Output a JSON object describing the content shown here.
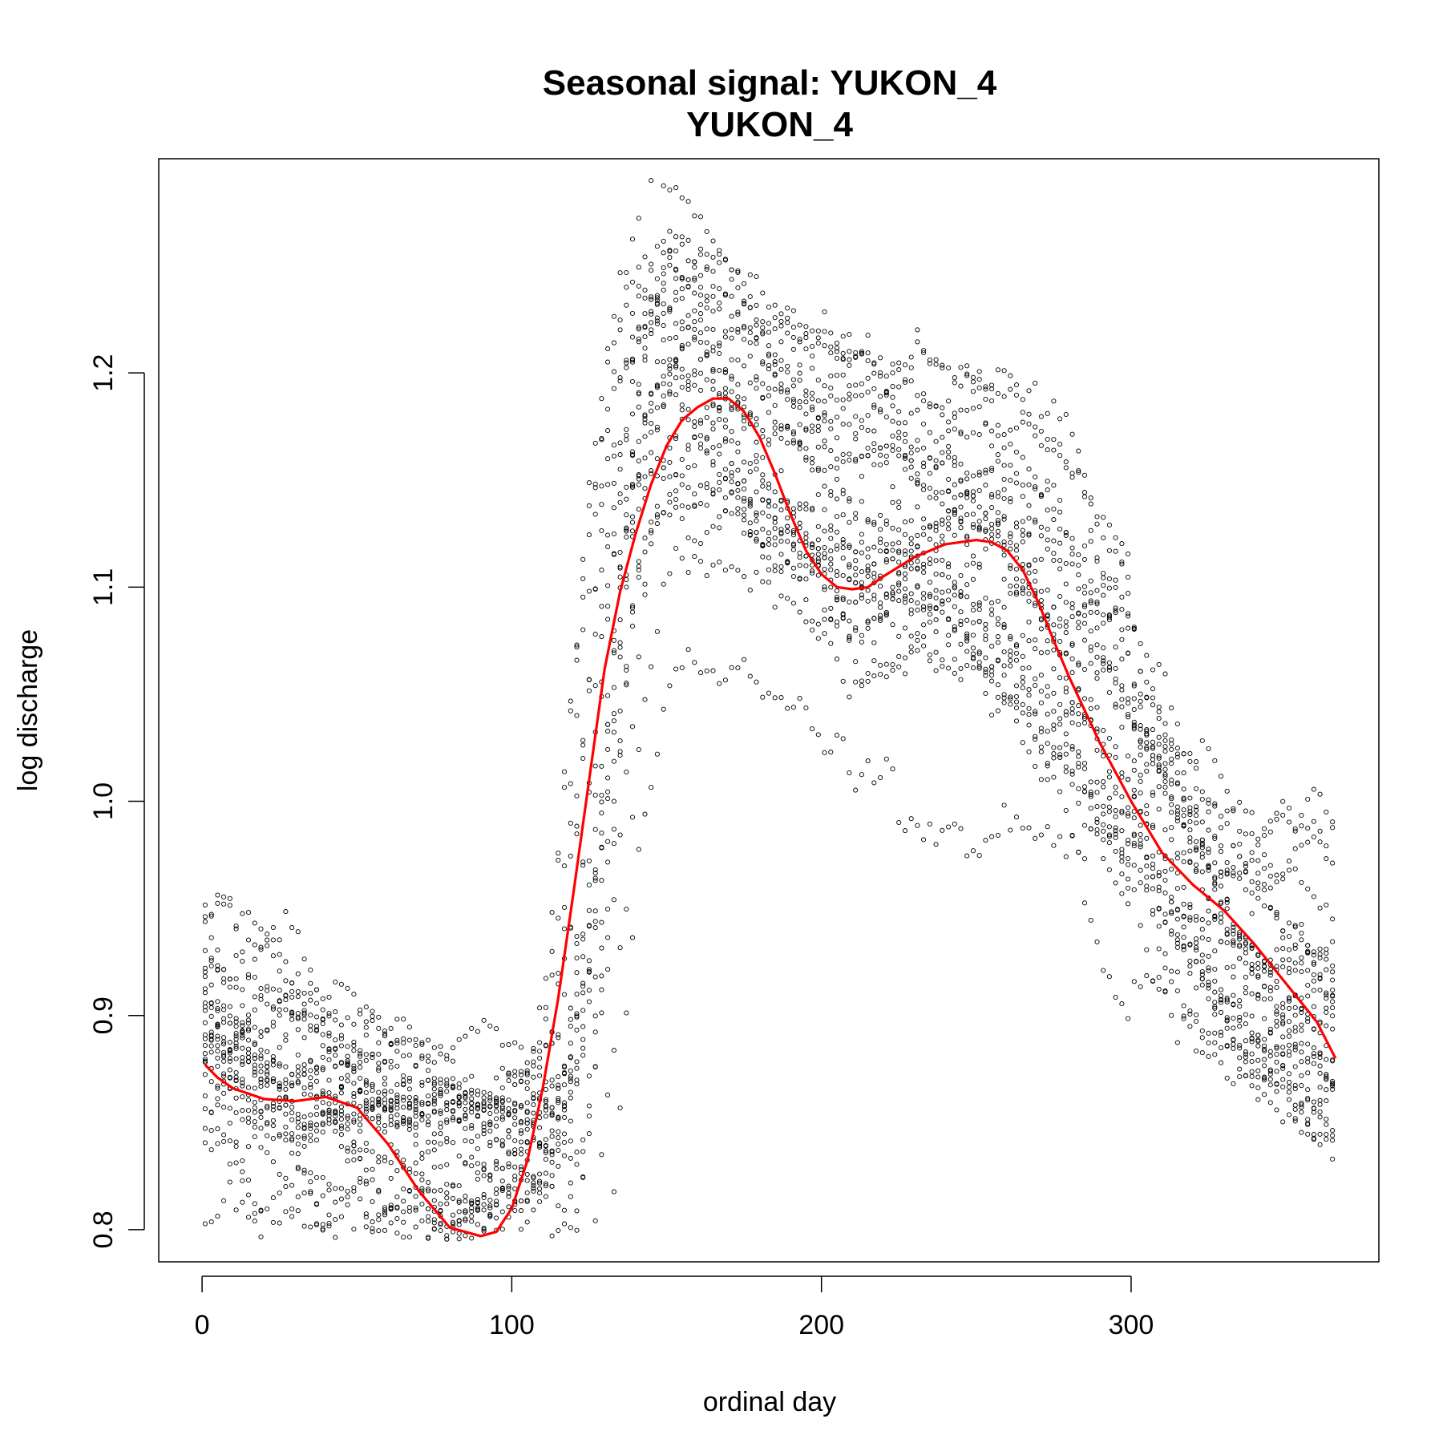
{
  "chart_data": {
    "type": "scatter",
    "title": "Seasonal signal: YUKON_4",
    "subtitle": "YUKON_4",
    "xlabel": "ordinal day",
    "ylabel": "log discharge",
    "xlim": [
      -14,
      380
    ],
    "ylim": [
      0.785,
      1.3
    ],
    "xticks": [
      0,
      100,
      200,
      300
    ],
    "yticks": [
      0.8,
      0.9,
      1.0,
      1.1,
      1.2
    ],
    "xtick_labels": [
      "0",
      "100",
      "200",
      "300"
    ],
    "ytick_labels": [
      "0.8",
      "0.9",
      "1.0",
      "1.1",
      "1.2"
    ],
    "grid": false,
    "legend": "none",
    "colors": {
      "points": "#000000",
      "smooth": "#ff0000"
    },
    "series": [
      {
        "kind": "points",
        "marker": "open-circle",
        "n_years": 26,
        "curve_x": [
          1,
          10,
          20,
          30,
          40,
          50,
          60,
          70,
          80,
          90,
          100,
          110,
          115,
          120,
          125,
          130,
          135,
          140,
          145,
          150,
          155,
          160,
          165,
          170,
          175,
          180,
          190,
          200,
          210,
          220,
          230,
          240,
          250,
          260,
          270,
          280,
          290,
          300,
          310,
          320,
          330,
          340,
          350,
          360,
          366
        ],
        "curve_y": [
          0.895,
          0.882,
          0.872,
          0.862,
          0.852,
          0.846,
          0.842,
          0.838,
          0.836,
          0.834,
          0.833,
          0.834,
          0.842,
          0.87,
          0.93,
          1.02,
          1.1,
          1.16,
          1.185,
          1.195,
          1.2,
          1.195,
          1.185,
          1.175,
          1.165,
          1.16,
          1.15,
          1.14,
          1.135,
          1.13,
          1.128,
          1.125,
          1.12,
          1.11,
          1.095,
          1.075,
          1.05,
          1.02,
          0.99,
          0.96,
          0.94,
          0.925,
          0.912,
          0.902,
          0.897
        ]
      },
      {
        "kind": "smooth-line",
        "x": [
          1,
          5,
          10,
          20,
          30,
          40,
          50,
          60,
          70,
          80,
          90,
          95,
          100,
          105,
          110,
          115,
          120,
          125,
          130,
          135,
          140,
          145,
          150,
          155,
          160,
          165,
          170,
          175,
          180,
          185,
          190,
          195,
          200,
          205,
          210,
          215,
          220,
          230,
          240,
          250,
          255,
          260,
          265,
          270,
          275,
          280,
          290,
          300,
          310,
          320,
          330,
          340,
          350,
          360,
          366
        ],
        "y": [
          0.877,
          0.871,
          0.866,
          0.861,
          0.86,
          0.862,
          0.857,
          0.84,
          0.818,
          0.801,
          0.797,
          0.799,
          0.81,
          0.832,
          0.866,
          0.908,
          0.958,
          1.01,
          1.062,
          1.098,
          1.125,
          1.148,
          1.166,
          1.178,
          1.184,
          1.188,
          1.188,
          1.182,
          1.17,
          1.153,
          1.134,
          1.117,
          1.106,
          1.1,
          1.099,
          1.1,
          1.105,
          1.114,
          1.12,
          1.122,
          1.121,
          1.117,
          1.108,
          1.093,
          1.075,
          1.058,
          1.027,
          1.0,
          0.976,
          0.961,
          0.949,
          0.933,
          0.915,
          0.897,
          0.88
        ]
      }
    ]
  }
}
